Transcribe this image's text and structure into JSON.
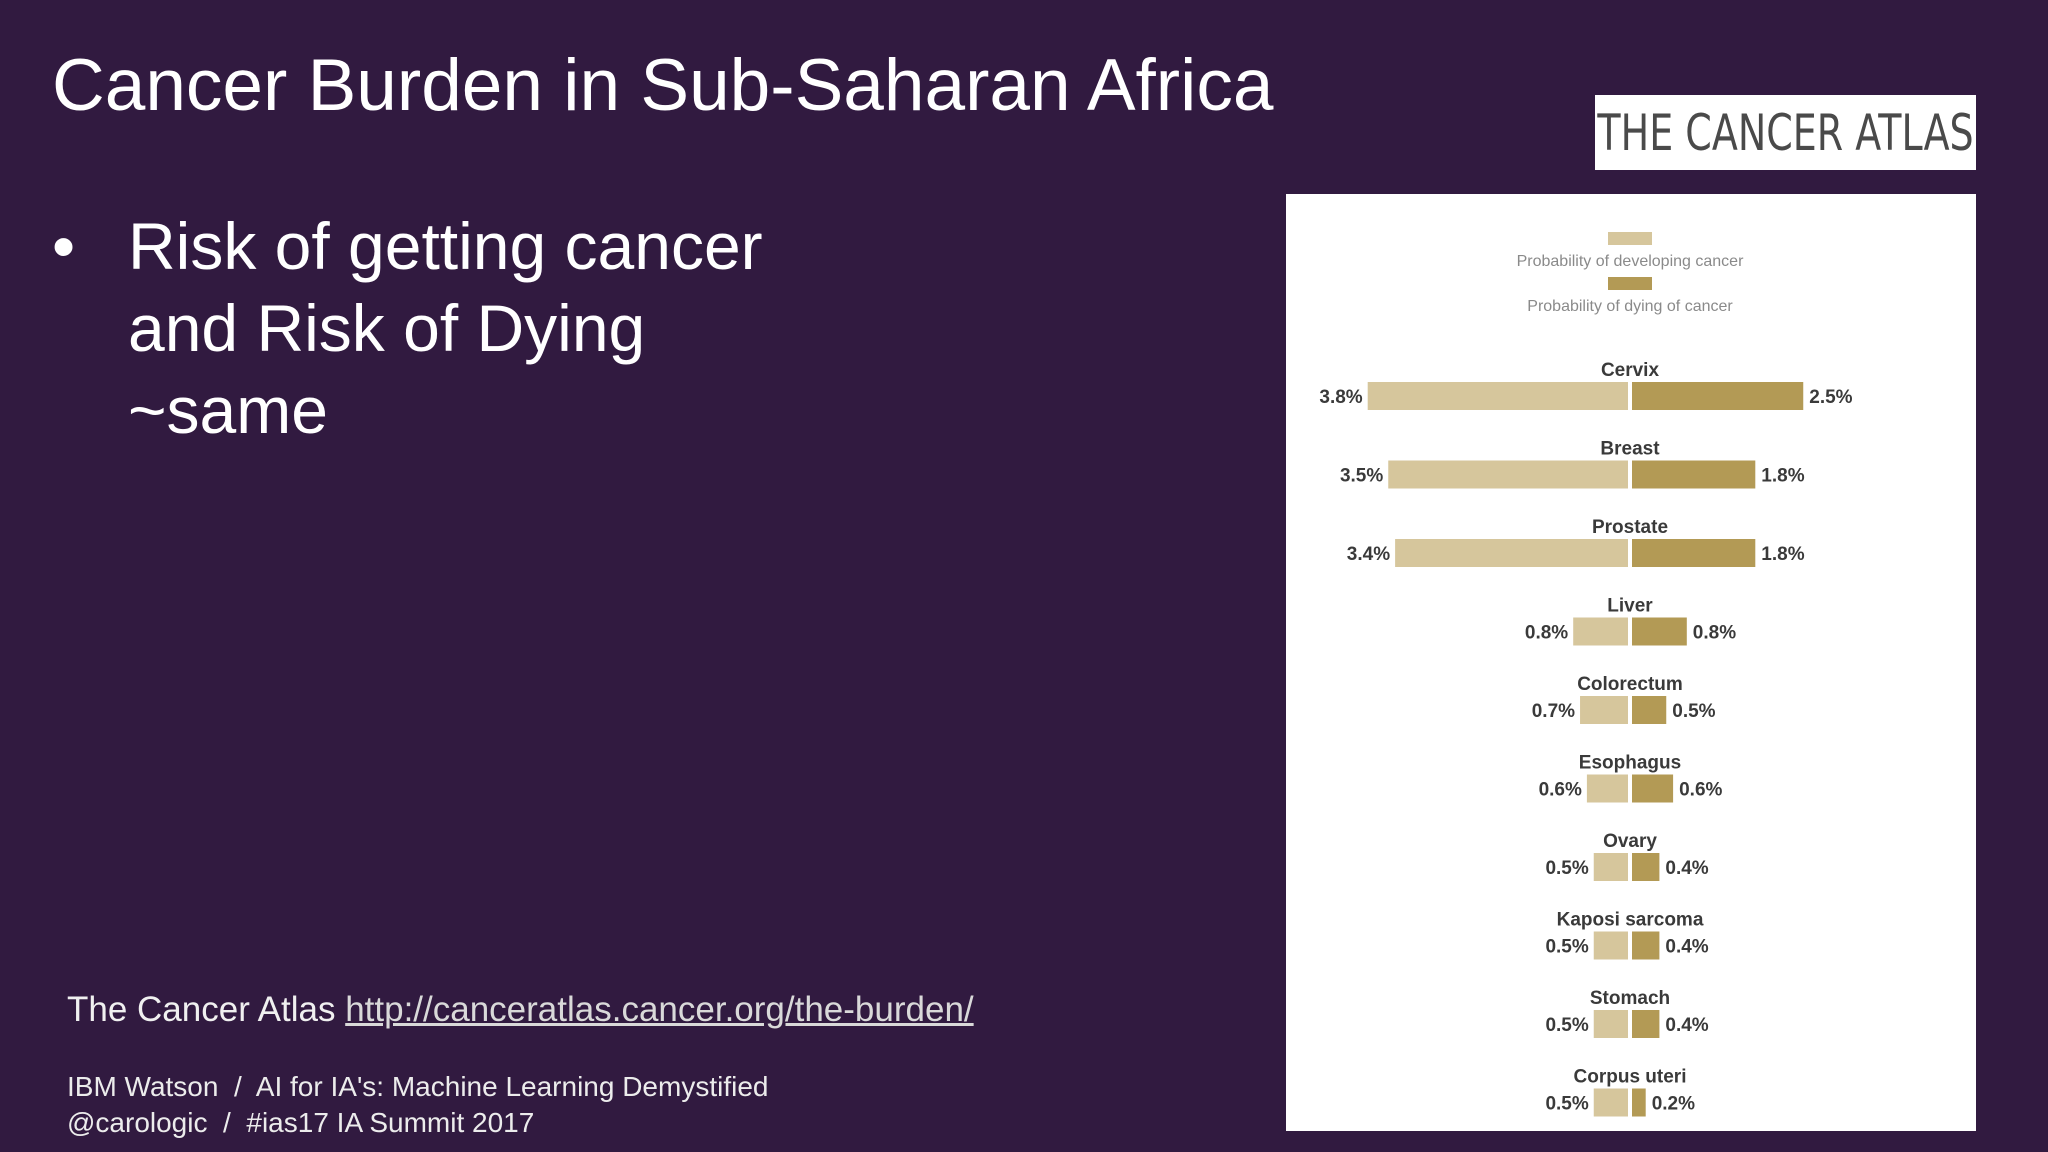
{
  "slide": {
    "title": "Cancer Burden in Sub-Saharan Africa",
    "bullet_symbol": "•",
    "bullet_lines": [
      "Risk of getting cancer",
      "and Risk of Dying",
      "~same"
    ],
    "logo_text": "THE CANCER ATLAS",
    "source_label": "The Cancer Atlas",
    "source_url": "http://canceratlas.cancer.org/the-burden/",
    "footer_line1": "IBM Watson  /  AI for IA's: Machine Learning Demystified",
    "footer_line2": "@carologic  /  #ias17 IA Summit 2017"
  },
  "colors": {
    "background": "#311a40",
    "developing": "#d6c69c",
    "dying": "#b39a55"
  },
  "chart_data": {
    "type": "bar",
    "orientation": "horizontal-diverging",
    "legend": [
      "Probability of developing cancer",
      "Probability of dying of cancer"
    ],
    "legend_position": "top-center",
    "categories": [
      "Cervix",
      "Breast",
      "Prostate",
      "Liver",
      "Colorectum",
      "Esophagus",
      "Ovary",
      "Kaposi sarcoma",
      "Stomach",
      "Corpus uteri"
    ],
    "series": [
      {
        "name": "Probability of developing cancer",
        "values": [
          3.8,
          3.5,
          3.4,
          0.8,
          0.7,
          0.6,
          0.5,
          0.5,
          0.5,
          0.5
        ],
        "labels": [
          "3.8%",
          "3.5%",
          "3.4%",
          "0.8%",
          "0.7%",
          "0.6%",
          "0.5%",
          "0.5%",
          "0.5%",
          "0.5%"
        ]
      },
      {
        "name": "Probability of dying of cancer",
        "values": [
          2.5,
          1.8,
          1.8,
          0.8,
          0.5,
          0.6,
          0.4,
          0.4,
          0.4,
          0.2
        ],
        "labels": [
          "2.5%",
          "1.8%",
          "1.8%",
          "0.8%",
          "0.5%",
          "0.6%",
          "0.4%",
          "0.4%",
          "0.4%",
          "0.2%"
        ]
      }
    ],
    "unit": "%",
    "grid": false
  }
}
